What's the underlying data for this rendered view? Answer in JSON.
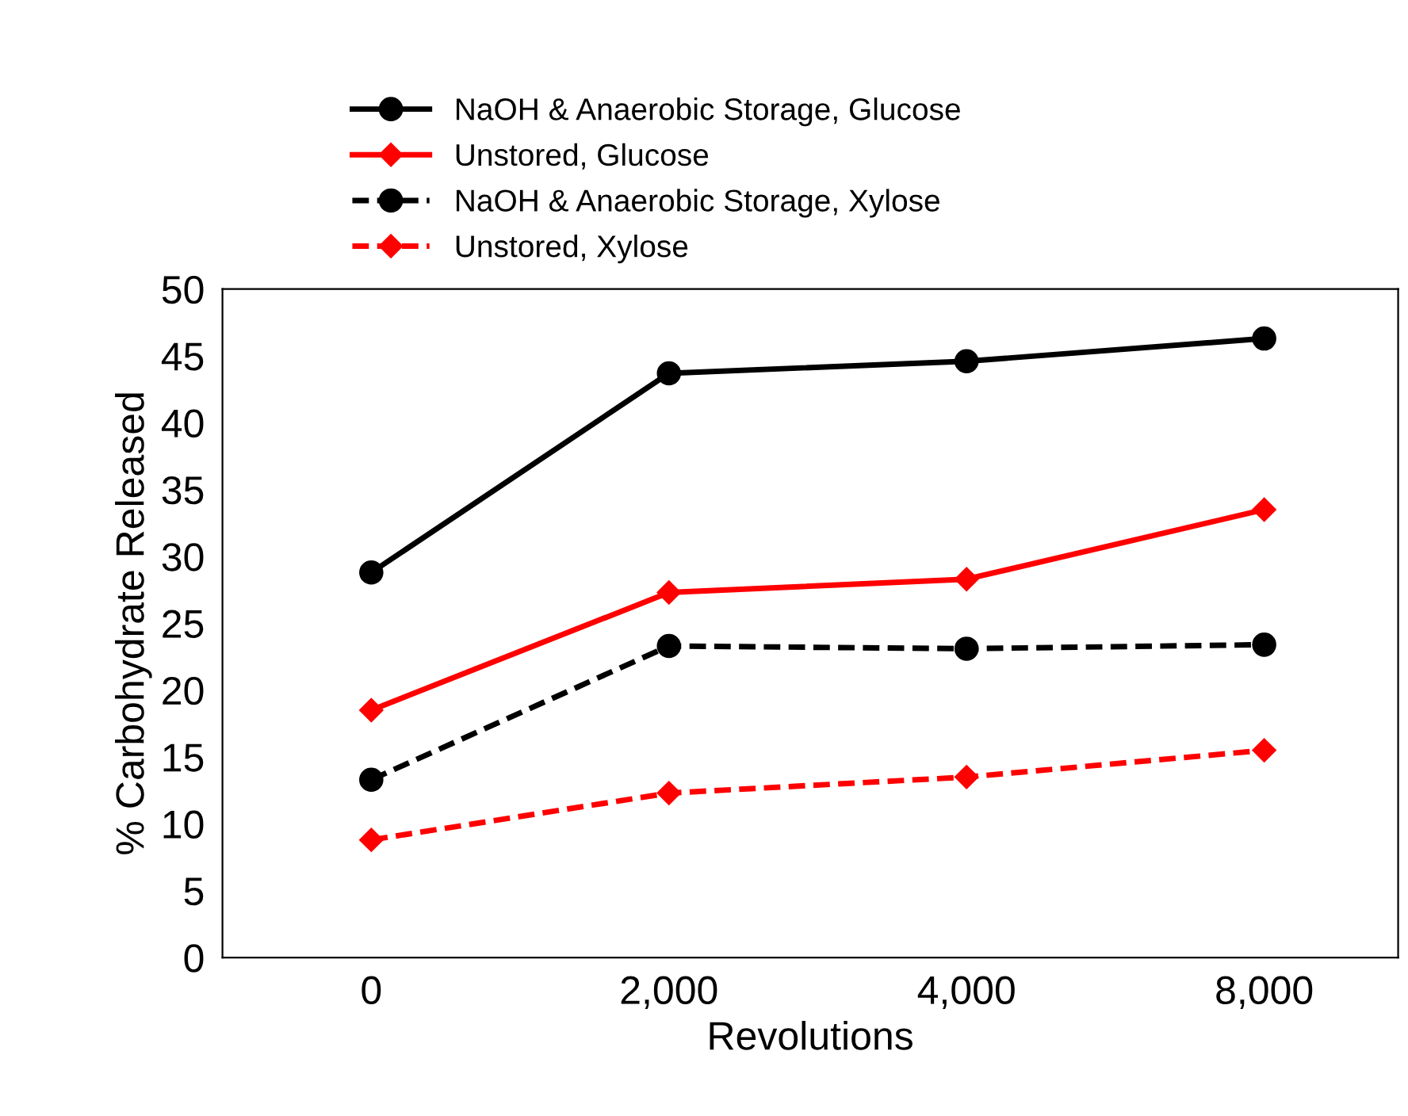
{
  "chart_data": {
    "type": "line",
    "xlabel": "Revolutions",
    "ylabel": "% Carbohydrate Released",
    "categories": [
      "0",
      "2,000",
      "4,000",
      "8,000"
    ],
    "ylim": [
      0,
      50
    ],
    "yticks": [
      0,
      5,
      10,
      15,
      20,
      25,
      30,
      35,
      40,
      45,
      50
    ],
    "grid": false,
    "legend": "top",
    "series": [
      {
        "name": "NaOH & Anaerobic Storage, Glucose",
        "color": "#000000",
        "marker": "circle",
        "line_style": "solid",
        "values": [
          28.8,
          43.7,
          44.6,
          46.3
        ]
      },
      {
        "name": "Unstored, Glucose",
        "color": "#ff0000",
        "marker": "diamond",
        "line_style": "solid",
        "values": [
          18.5,
          27.3,
          28.3,
          33.5
        ]
      },
      {
        "name": "NaOH & Anaerobic Storage, Xylose",
        "color": "#000000",
        "marker": "circle",
        "line_style": "dashed",
        "values": [
          13.3,
          23.3,
          23.1,
          23.4
        ]
      },
      {
        "name": "Unstored, Xylose",
        "color": "#ff0000",
        "marker": "diamond",
        "line_style": "dashed",
        "values": [
          8.8,
          12.3,
          13.5,
          15.5
        ]
      }
    ]
  }
}
